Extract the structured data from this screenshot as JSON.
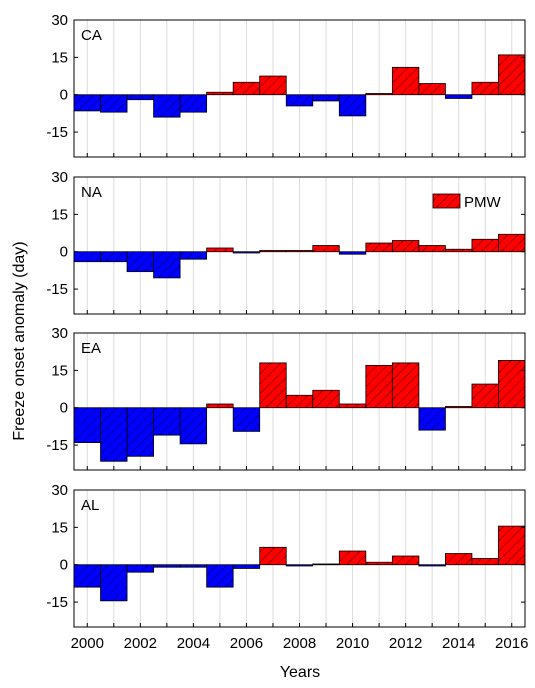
{
  "chart_data": {
    "type": "bar",
    "xlabel": "Years",
    "ylabel": "Freeze onset anomaly (day)",
    "x": [
      2000,
      2001,
      2002,
      2003,
      2004,
      2005,
      2006,
      2007,
      2008,
      2009,
      2010,
      2011,
      2012,
      2013,
      2014,
      2015,
      2016
    ],
    "xticks": [
      "2000",
      "2002",
      "2004",
      "2006",
      "2008",
      "2010",
      "2012",
      "2014",
      "2016"
    ],
    "yticks": [
      "30",
      "15",
      "0",
      "-15"
    ],
    "ylim": [
      -25,
      30
    ],
    "xlim": [
      1999.5,
      2016.5
    ],
    "grid": "vertical",
    "legend": {
      "label": "PMW",
      "placement": "top-right",
      "panel": "NA"
    },
    "colors": {
      "negative": "#0000ff",
      "positive": "#ff0000"
    },
    "panels": [
      {
        "label": "CA",
        "values": [
          -6.5,
          -7,
          -2,
          -9,
          -7,
          1,
          5,
          7.5,
          -4.5,
          -2.5,
          -8.5,
          0.5,
          11,
          4.5,
          -1.5,
          5,
          16
        ]
      },
      {
        "label": "NA",
        "values": [
          -4,
          -4,
          -8,
          -10.5,
          -3,
          1.5,
          -0.5,
          0.5,
          0.5,
          2.5,
          -1,
          3.5,
          4.5,
          2.5,
          1,
          5,
          7
        ]
      },
      {
        "label": "EA",
        "values": [
          -14,
          -21.5,
          -19.5,
          -11,
          -14.5,
          1.5,
          -9.5,
          18,
          5,
          7,
          1.5,
          17,
          18,
          -9,
          0.5,
          9.5,
          19
        ]
      },
      {
        "label": "AL",
        "values": [
          -9,
          -14.5,
          -3,
          -1,
          -1,
          -9,
          -1.5,
          7,
          -0.5,
          0.3,
          5.5,
          1,
          3.5,
          -0.5,
          4.5,
          2.5,
          15.5
        ]
      }
    ]
  }
}
